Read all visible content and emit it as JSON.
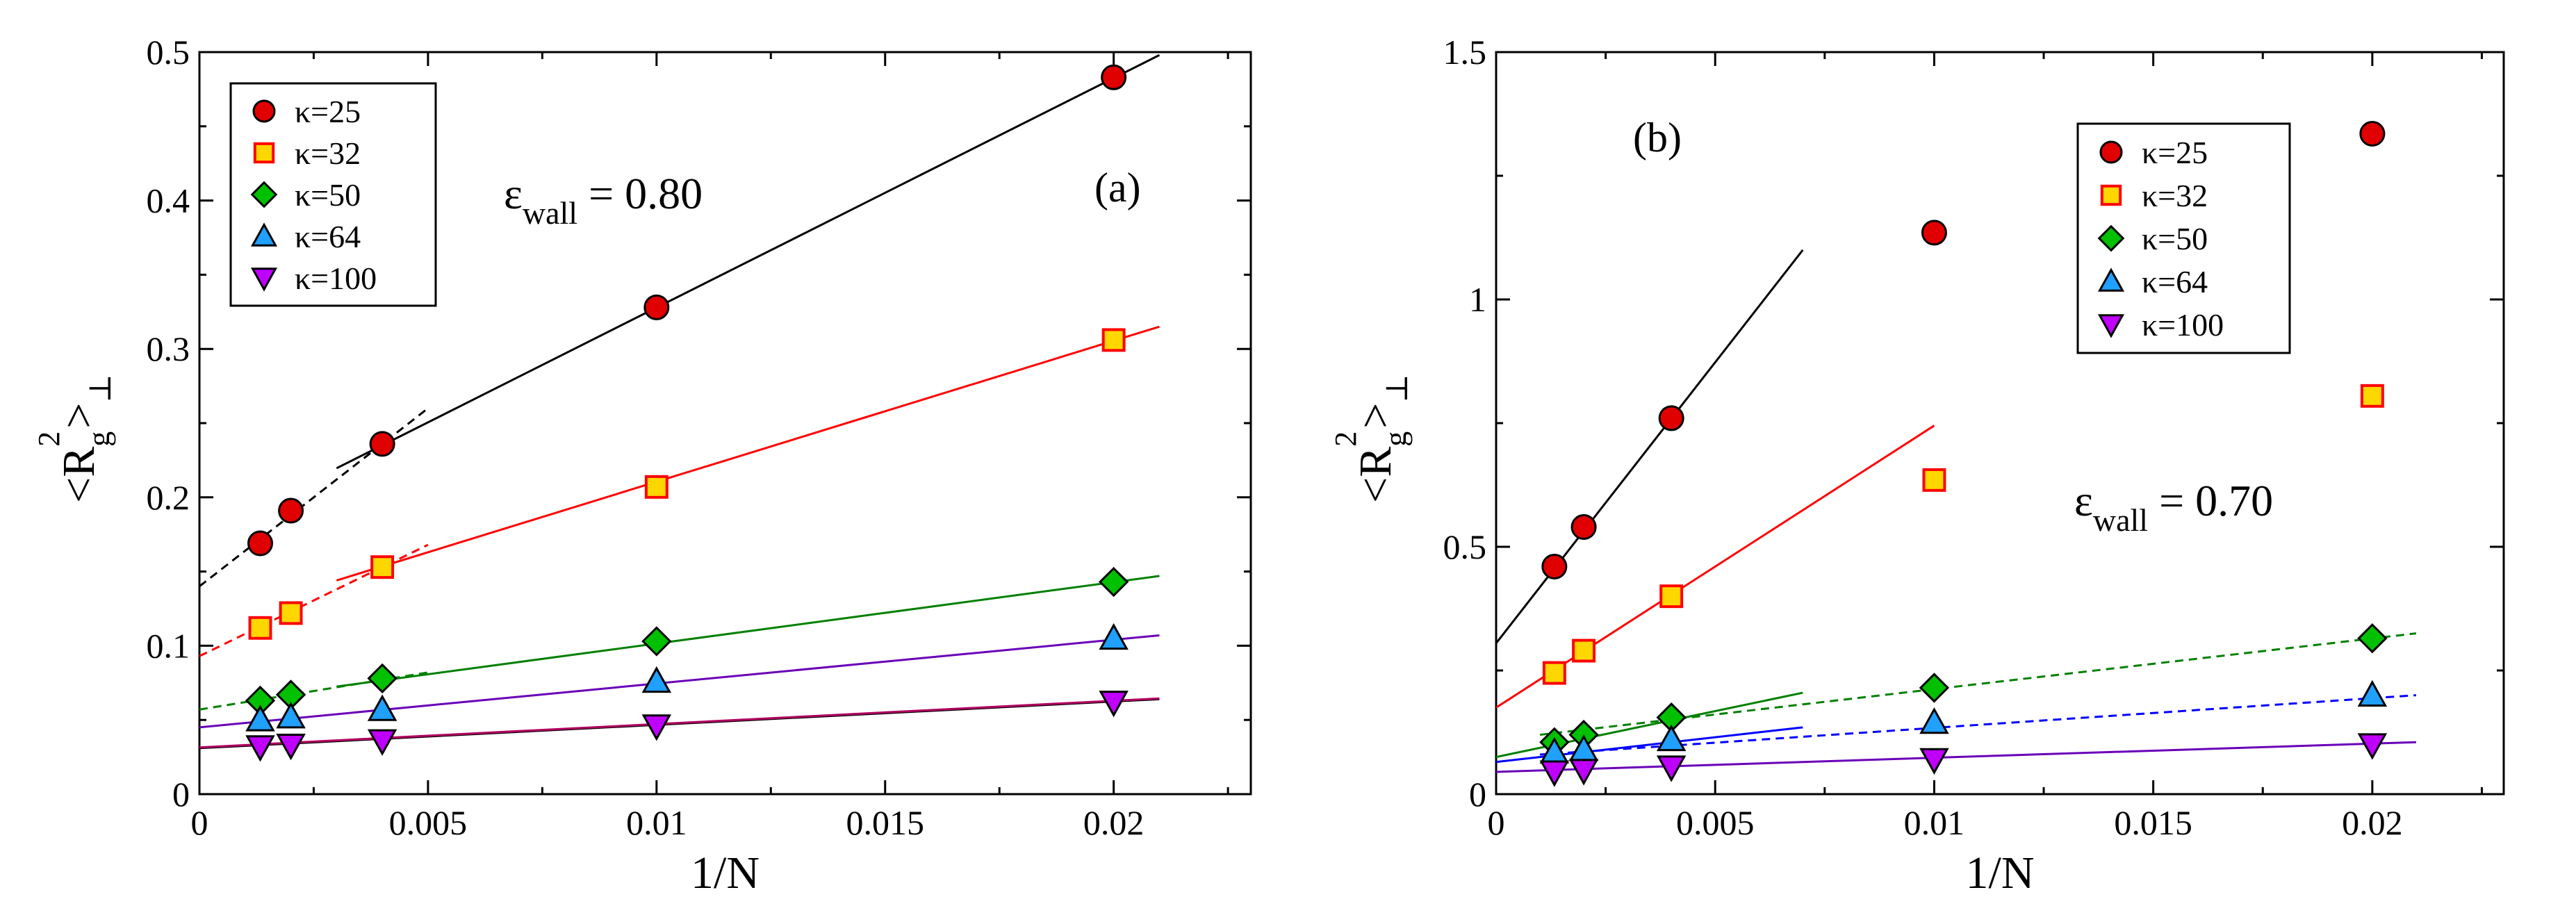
{
  "chart_data": [
    {
      "panel": "a",
      "type": "scatter",
      "panel_label": "(a)",
      "annotation": {
        "symbol": "ε",
        "sub": "wall",
        "rest": " = 0.80"
      },
      "xlabel": "1/N",
      "ylabel": {
        "main": "<R",
        "sub": "g",
        "sup": "2",
        "close": ">",
        "subclose": "⊥"
      },
      "xlim": [
        0,
        0.023
      ],
      "ylim": [
        0,
        0.5
      ],
      "xticks": [
        {
          "v": 0,
          "t": "0"
        },
        {
          "v": 0.005,
          "t": "0.005"
        },
        {
          "v": 0.01,
          "t": "0.01"
        },
        {
          "v": 0.015,
          "t": "0.015"
        },
        {
          "v": 0.02,
          "t": "0.02"
        }
      ],
      "yticks": [
        {
          "v": 0,
          "t": "0"
        },
        {
          "v": 0.1,
          "t": "0.1"
        },
        {
          "v": 0.2,
          "t": "0.2"
        },
        {
          "v": 0.3,
          "t": "0.3"
        },
        {
          "v": 0.4,
          "t": "0.4"
        },
        {
          "v": 0.5,
          "t": "0.5"
        }
      ],
      "legend_position": "top-left",
      "series": [
        {
          "name": "κ=25",
          "marker": "circle",
          "fill": "#e00000",
          "x": [
            0.00133,
            0.002,
            0.004,
            0.01,
            0.02
          ],
          "y": [
            0.169,
            0.191,
            0.236,
            0.328,
            0.483
          ]
        },
        {
          "name": "κ=32",
          "marker": "square",
          "fill": "#ffd700",
          "stroke": "#ff0000",
          "x": [
            0.00133,
            0.002,
            0.004,
            0.01,
            0.02
          ],
          "y": [
            0.112,
            0.122,
            0.153,
            0.207,
            0.306
          ]
        },
        {
          "name": "κ=50",
          "marker": "diamond",
          "fill": "#00c000",
          "x": [
            0.00133,
            0.002,
            0.004,
            0.01,
            0.02
          ],
          "y": [
            0.063,
            0.067,
            0.078,
            0.103,
            0.143
          ]
        },
        {
          "name": "κ=64",
          "marker": "triangle-up",
          "fill": "#20a0ff",
          "x": [
            0.00133,
            0.002,
            0.004,
            0.01,
            0.02
          ],
          "y": [
            0.05,
            0.052,
            0.057,
            0.076,
            0.105
          ]
        },
        {
          "name": "κ=100",
          "marker": "triangle-down",
          "fill": "#c000ff",
          "x": [
            0.00133,
            0.002,
            0.004,
            0.01,
            0.02
          ],
          "y": [
            0.032,
            0.033,
            0.036,
            0.046,
            0.062
          ]
        }
      ],
      "fits": [
        {
          "color": "#000000",
          "style": "solid",
          "x": [
            0.003,
            0.021
          ],
          "y": [
            0.2196,
            0.498
          ]
        },
        {
          "color": "#000000",
          "style": "dashed",
          "x": [
            0,
            0.005
          ],
          "y": [
            0.14,
            0.26
          ]
        },
        {
          "color": "#ff0000",
          "style": "solid",
          "x": [
            0.003,
            0.021
          ],
          "y": [
            0.144,
            0.315
          ]
        },
        {
          "color": "#ff0000",
          "style": "dashed",
          "x": [
            0,
            0.005
          ],
          "y": [
            0.093,
            0.168
          ]
        },
        {
          "color": "#008000",
          "style": "solid",
          "x": [
            0.003,
            0.021
          ],
          "y": [
            0.0725,
            0.147
          ]
        },
        {
          "color": "#008000",
          "style": "dashed",
          "x": [
            0,
            0.005
          ],
          "y": [
            0.057,
            0.082
          ]
        },
        {
          "color": "#6a00b8",
          "style": "solid",
          "x": [
            0,
            0.021
          ],
          "y": [
            0.045,
            0.107
          ]
        },
        {
          "color": "#000000",
          "style": "solid",
          "x": [
            0,
            0.021
          ],
          "y": [
            0.031,
            0.064
          ]
        },
        {
          "color": "#b00060",
          "style": "solid",
          "x": [
            0,
            0.021
          ],
          "y": [
            0.0315,
            0.0645
          ]
        }
      ]
    },
    {
      "panel": "b",
      "type": "scatter",
      "panel_label": "(b)",
      "annotation": {
        "symbol": "ε",
        "sub": "wall",
        "rest": " = 0.70"
      },
      "xlabel": "1/N",
      "ylabel": {
        "main": "<R",
        "sub": "g",
        "sup": "2",
        "close": ">",
        "subclose": "⊥"
      },
      "xlim": [
        0,
        0.023
      ],
      "ylim": [
        0,
        1.5
      ],
      "xticks": [
        {
          "v": 0,
          "t": "0"
        },
        {
          "v": 0.005,
          "t": "0.005"
        },
        {
          "v": 0.01,
          "t": "0.01"
        },
        {
          "v": 0.015,
          "t": "0.015"
        },
        {
          "v": 0.02,
          "t": "0.02"
        }
      ],
      "yticks": [
        {
          "v": 0,
          "t": "0"
        },
        {
          "v": 0.5,
          "t": "0.5"
        },
        {
          "v": 1.0,
          "t": "1"
        },
        {
          "v": 1.5,
          "t": "1.5"
        }
      ],
      "legend_position": "top-right",
      "series": [
        {
          "name": "κ=25",
          "marker": "circle",
          "fill": "#e00000",
          "x": [
            0.00133,
            0.002,
            0.004,
            0.01,
            0.02
          ],
          "y": [
            0.46,
            0.54,
            0.76,
            1.135,
            1.335
          ]
        },
        {
          "name": "κ=32",
          "marker": "square",
          "fill": "#ffd700",
          "stroke": "#ff0000",
          "x": [
            0.00133,
            0.002,
            0.004,
            0.01,
            0.02
          ],
          "y": [
            0.245,
            0.29,
            0.4,
            0.635,
            0.805
          ]
        },
        {
          "name": "κ=50",
          "marker": "diamond",
          "fill": "#00c000",
          "x": [
            0.00133,
            0.002,
            0.004,
            0.01,
            0.02
          ],
          "y": [
            0.105,
            0.12,
            0.155,
            0.215,
            0.315
          ]
        },
        {
          "name": "κ=64",
          "marker": "triangle-up",
          "fill": "#20a0ff",
          "x": [
            0.00133,
            0.002,
            0.004,
            0.01,
            0.02
          ],
          "y": [
            0.085,
            0.09,
            0.11,
            0.145,
            0.2
          ]
        },
        {
          "name": "κ=100",
          "marker": "triangle-down",
          "fill": "#c000ff",
          "x": [
            0.00133,
            0.002,
            0.004,
            0.01,
            0.02
          ],
          "y": [
            0.045,
            0.048,
            0.055,
            0.07,
            0.1
          ]
        }
      ],
      "fits": [
        {
          "color": "#000000",
          "style": "solid",
          "x": [
            0,
            0.007
          ],
          "y": [
            0.305,
            1.1
          ]
        },
        {
          "color": "#ff0000",
          "style": "solid",
          "x": [
            0,
            0.01
          ],
          "y": [
            0.175,
            0.745
          ]
        },
        {
          "color": "#008000",
          "style": "solid",
          "x": [
            0,
            0.007
          ],
          "y": [
            0.075,
            0.205
          ]
        },
        {
          "color": "#008000",
          "style": "dashed",
          "x": [
            0.001,
            0.021
          ],
          "y": [
            0.12,
            0.325
          ]
        },
        {
          "color": "#0000ff",
          "style": "solid",
          "x": [
            0,
            0.007
          ],
          "y": [
            0.065,
            0.135
          ]
        },
        {
          "color": "#0000ff",
          "style": "dashed",
          "x": [
            0.001,
            0.021
          ],
          "y": [
            0.08,
            0.2
          ]
        },
        {
          "color": "#6a00b8",
          "style": "solid",
          "x": [
            0,
            0.021
          ],
          "y": [
            0.045,
            0.105
          ]
        }
      ]
    }
  ]
}
